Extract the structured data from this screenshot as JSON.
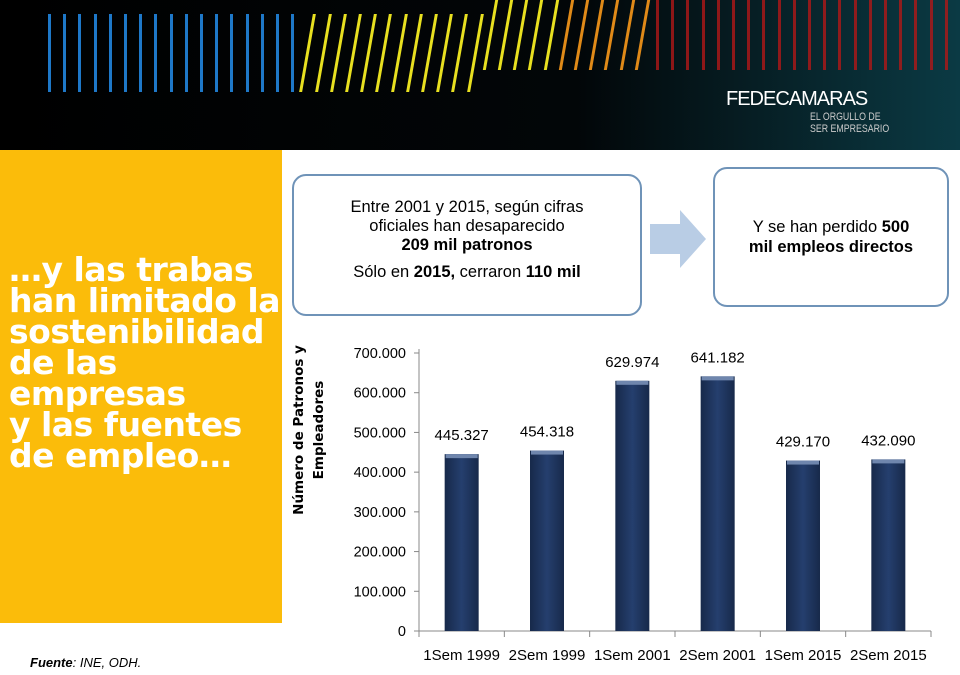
{
  "banner": {
    "logo_title": "FEDECAMARAS",
    "logo_sub1": "EL ORGULLO DE",
    "logo_sub2": "SER EMPRESARIO"
  },
  "headline": [
    "…y las trabas",
    "han limitado la",
    "sostenibilidad",
    "de las",
    "empresas",
    "y las fuentes",
    "de empleo…"
  ],
  "box1": {
    "l1": "Entre 2001 y 2015, según cifras",
    "l2": "oficiales han desaparecido",
    "l3b": "209 mil patronos",
    ".": ".",
    "l4a": "Sólo en ",
    "l4b": "2015,",
    "l4c": " cerraron ",
    "l4d": "110 mil"
  },
  "box2": {
    "l1a": "Y se han perdido ",
    "l1b": "500",
    "l2": "mil empleos directos"
  },
  "source": {
    "label": "Fuente",
    "text": ": INE, ODH."
  },
  "colors": {
    "bar": "#1f3864",
    "panel": "#fbbc0a",
    "box_border": "#6f93b8"
  },
  "chart_data": {
    "type": "bar",
    "categories": [
      "1Sem 1999",
      "2Sem 1999",
      "1Sem 2001",
      "2Sem 2001",
      "1Sem 2015",
      "2Sem 2015"
    ],
    "values": [
      445327,
      454318,
      629974,
      641182,
      429170,
      432090
    ],
    "data_labels": [
      "445.327",
      "454.318",
      "629.974",
      "641.182",
      "429.170",
      "432.090"
    ],
    "ylabel": "Número de Patronos y Empleadores",
    "ylim": [
      0,
      700000
    ],
    "yticks": [
      0,
      100000,
      200000,
      300000,
      400000,
      500000,
      600000,
      700000
    ],
    "ytick_labels": [
      "0",
      "100.000",
      "200.000",
      "300.000",
      "400.000",
      "500.000",
      "600.000",
      "700.000"
    ],
    "grid": false
  }
}
